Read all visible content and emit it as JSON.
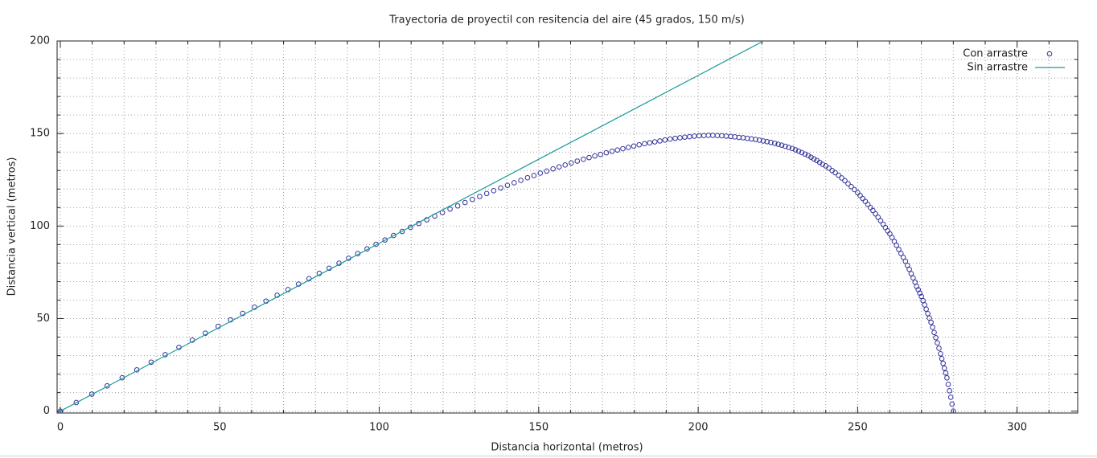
{
  "chart_data": {
    "type": "scatter",
    "title": "Trayectoria de proyectil con resitencia del aire (45 grados, 150 m/s)",
    "xlabel": "Distancia horizontal (metros)",
    "ylabel": "Distancia vertical (metros)",
    "xlim": [
      -1,
      319
    ],
    "ylim": [
      -1,
      200
    ],
    "xticks": [
      0,
      50,
      100,
      150,
      200,
      250,
      300
    ],
    "yticks": [
      0,
      50,
      100,
      150,
      200
    ],
    "xminorticks": [
      10,
      20,
      30,
      40,
      60,
      70,
      80,
      90,
      110,
      120,
      130,
      140,
      160,
      170,
      180,
      190,
      210,
      220,
      230,
      240,
      260,
      270,
      280,
      290,
      310
    ],
    "yminorticks": [
      10,
      20,
      30,
      40,
      60,
      70,
      80,
      90,
      110,
      120,
      130,
      140,
      160,
      170,
      180,
      190
    ],
    "grid": true,
    "legend": "top-right",
    "series": [
      {
        "name": "Con arrastre",
        "color": "#34349a",
        "style": "points",
        "x": [
          0,
          5,
          9.9,
          14.7,
          19.4,
          24,
          28.5,
          32.9,
          37.2,
          41.4,
          45.5,
          49.5,
          53.4,
          57.2,
          60.9,
          64.5,
          68,
          71.4,
          74.7,
          78,
          81.2,
          84.3,
          87.4,
          90.4,
          93.3,
          96.2,
          99,
          101.8,
          104.5,
          107.2,
          109.8,
          112.4,
          114.9,
          117.4,
          119.8,
          122.2,
          124.6,
          126.9,
          129.2,
          131.5,
          133.7,
          135.9,
          138.1,
          140.2,
          142.3,
          144.4,
          146.5,
          148.5,
          150.5,
          152.5,
          154.5,
          156.4,
          158.3,
          160.2,
          162.1,
          164,
          165.8,
          167.6,
          169.4,
          171.2,
          173,
          174.7,
          176.4,
          178.1,
          179.8,
          181.5,
          183.2,
          184.8,
          186.4,
          188,
          189.6,
          191.2,
          192.8,
          194.3,
          195.8,
          197.3,
          198.8,
          200.3,
          201.8,
          203.2,
          204.6,
          206,
          207.4,
          208.8,
          210.2,
          211.5,
          212.8,
          214.1,
          215.4,
          216.7,
          218,
          219.2,
          220.4,
          221.6,
          222.8,
          224,
          225.1,
          226.2,
          227.3,
          228.4,
          229.5,
          230.5,
          231.5,
          232.5,
          233.5,
          234.5,
          235.4,
          236.3,
          237.2,
          238.1,
          239,
          240,
          241,
          242,
          243,
          244,
          245,
          246,
          247,
          248,
          249,
          250,
          250.8,
          251.6,
          252.4,
          253.2,
          254,
          254.8,
          255.6,
          256.4,
          257.2,
          258,
          258.7,
          259.4,
          260.1,
          260.8,
          261.5,
          262.2,
          262.9,
          263.6,
          264.3,
          265,
          265.6,
          266.2,
          266.8,
          267.4,
          268,
          268.5,
          269,
          269.5,
          270,
          270.5,
          271,
          271.5,
          272,
          272.5,
          273,
          273.5,
          274,
          274.5,
          275,
          275.5,
          276,
          276.4,
          276.8,
          277.2,
          277.6,
          278,
          278.4,
          278.8,
          279.2,
          279.6,
          280
        ],
        "values": [
          0,
          4.65,
          9.2,
          13.66,
          18.03,
          22.29,
          26.46,
          30.53,
          34.49,
          38.36,
          42.13,
          45.8,
          49.36,
          52.82,
          56.18,
          59.45,
          62.61,
          65.68,
          68.64,
          71.59,
          74.45,
          77.2,
          79.95,
          82.6,
          85.14,
          87.69,
          90.13,
          92.5,
          94.9,
          97.1,
          99.3,
          101.4,
          103.4,
          105.4,
          107.3,
          109.2,
          110.9,
          112.7,
          114.4,
          116,
          117.6,
          119.1,
          120.6,
          122,
          123.4,
          124.7,
          126.1,
          127.3,
          128.6,
          129.7,
          130.9,
          132,
          133,
          134.1,
          135.1,
          136.1,
          137,
          137.9,
          138.7,
          139.6,
          140.4,
          141.1,
          141.8,
          142.5,
          143.2,
          143.9,
          144.5,
          145,
          145.5,
          146,
          146.5,
          147,
          147.4,
          147.7,
          148.05,
          148.3,
          148.6,
          148.8,
          148.9,
          149,
          149,
          148.9,
          148.8,
          148.6,
          148.4,
          148.2,
          147.9,
          147.7,
          147.4,
          147.1,
          146.8,
          146.4,
          146,
          145.6,
          145.2,
          144.7,
          144.2,
          143.7,
          143.1,
          142.5,
          141.9,
          141.2,
          140.5,
          139.7,
          138.9,
          138.1,
          137.2,
          136.3,
          135.4,
          134.4,
          133.4,
          132.5,
          131.3,
          130,
          128.8,
          127.5,
          126,
          124.5,
          122.9,
          121.3,
          119.7,
          118,
          116.5,
          114.9,
          113.3,
          111.7,
          110,
          108.4,
          106.6,
          104.8,
          102.9,
          101,
          99.2,
          97.4,
          95.8,
          93.8,
          91.7,
          89.6,
          87.4,
          85.2,
          83.1,
          81,
          78.8,
          76.6,
          74.3,
          72,
          69.7,
          67.4,
          65.6,
          63.8,
          62,
          59.7,
          57.4,
          55.1,
          52.7,
          50.3,
          48,
          45.3,
          42.5,
          39.7,
          36.9,
          34,
          31,
          28.4,
          25.8,
          23.2,
          20.6,
          18,
          14.5,
          11,
          7.5,
          3.8,
          0
        ]
      },
      {
        "name": "Sin arrastre",
        "color": "#17999a",
        "style": "lines",
        "x": [
          0,
          50,
          100,
          150,
          200,
          220.5
        ],
        "values": [
          0,
          45.4,
          90.7,
          136.1,
          181.4,
          200
        ]
      }
    ]
  }
}
